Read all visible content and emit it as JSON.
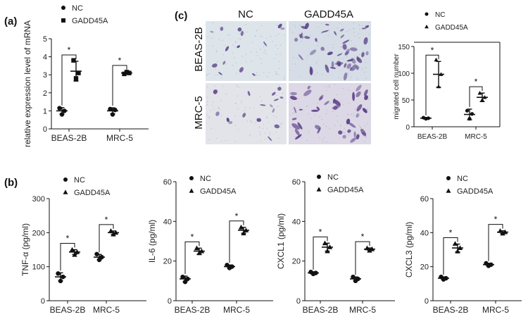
{
  "panels": {
    "a": "(a)",
    "b": "(b)",
    "c": "(c)"
  },
  "colors": {
    "ink": "#111111",
    "stain": "#5a3f86",
    "field": "#d9e2e9"
  },
  "micrograph": {
    "col_labels": [
      "NC",
      "GADD45A"
    ],
    "row_labels": [
      "BEAS-2B",
      "MRC-5"
    ]
  },
  "chart_data": [
    {
      "id": "a",
      "type": "scatter",
      "ylabel": "relative expression level of mRNA",
      "categories": [
        "BEAS-2B",
        "MRC-5"
      ],
      "ylim": [
        0,
        5
      ],
      "yticks": [
        0,
        1,
        2,
        3,
        4,
        5
      ],
      "legend": [
        "NC",
        "GADD45A"
      ],
      "legend_position": "top-left",
      "series": [
        {
          "name": "NC",
          "marker": "circle",
          "points": [
            [
              1.15,
              0.8,
              1.0
            ],
            [
              1.1,
              0.8,
              1.05
            ]
          ],
          "mean": [
            1.0,
            1.0
          ],
          "sd": [
            0.18,
            0.17
          ]
        },
        {
          "name": "GADD45A",
          "marker": "square",
          "points": [
            [
              3.8,
              2.8,
              3.1
            ],
            [
              3.05,
              3.15,
              3.1
            ]
          ],
          "mean": [
            3.2,
            3.1
          ],
          "sd": [
            0.55,
            0.07
          ]
        }
      ],
      "significance": [
        "*",
        "*"
      ]
    },
    {
      "id": "c",
      "type": "scatter",
      "ylabel": "migrated cell number",
      "categories": [
        "BEAS-2B",
        "MRC-5"
      ],
      "ylim": [
        0,
        150
      ],
      "yticks": [
        0,
        50,
        100,
        150
      ],
      "legend": [
        "NC",
        "GADD45A"
      ],
      "legend_position": "top-left",
      "series": [
        {
          "name": "NC",
          "marker": "circle",
          "points": [
            [
              17,
              15,
              16
            ],
            [
              30,
              15,
              24
            ]
          ],
          "mean": [
            16,
            23
          ],
          "sd": [
            1.5,
            10
          ]
        },
        {
          "name": "GADD45A",
          "marker": "triangle",
          "points": [
            [
              125,
              75,
              98
            ],
            [
              63,
              50,
              55
            ]
          ],
          "mean": [
            98,
            55
          ],
          "sd": [
            24,
            8
          ]
        }
      ],
      "significance": [
        "*",
        "*"
      ]
    },
    {
      "id": "tnf",
      "type": "scatter",
      "ylabel": "TNF-α (pg/ml)",
      "categories": [
        "BEAS-2B",
        "MRC-5"
      ],
      "ylim": [
        0,
        300
      ],
      "yticks": [
        0,
        100,
        200,
        300
      ],
      "legend": [
        "NC",
        "GADD45A"
      ],
      "legend_position": "top-left",
      "series": [
        {
          "name": "NC",
          "marker": "circle",
          "points": [
            [
              80,
              58,
              70
            ],
            [
              137,
              120,
              128
            ]
          ],
          "mean": [
            70,
            128
          ],
          "sd": [
            12,
            8
          ]
        },
        {
          "name": "GADD45A",
          "marker": "triangle",
          "points": [
            [
              150,
              135,
              143
            ],
            [
              205,
              195,
              200
            ]
          ],
          "mean": [
            143,
            200
          ],
          "sd": [
            7,
            5
          ]
        }
      ],
      "significance": [
        "*",
        "*"
      ]
    },
    {
      "id": "il6",
      "type": "scatter",
      "ylabel": "IL-6 (pg/ml)",
      "categories": [
        "BEAS-2B",
        "MRC-5"
      ],
      "ylim": [
        0,
        60
      ],
      "yticks": [
        0,
        20,
        40,
        60
      ],
      "legend": [
        "NC",
        "GADD45A"
      ],
      "legend_position": "top-left",
      "series": [
        {
          "name": "NC",
          "marker": "circle",
          "points": [
            [
              12,
              9.5,
              11
            ],
            [
              18,
              16.5,
              17.2
            ]
          ],
          "mean": [
            11,
            17.2
          ],
          "sd": [
            1.4,
            0.8
          ]
        },
        {
          "name": "GADD45A",
          "marker": "triangle",
          "points": [
            [
              26.5,
              24,
              25
            ],
            [
              37,
              34,
              35.5
            ]
          ],
          "mean": [
            25,
            35.5
          ],
          "sd": [
            1.5,
            1.5
          ]
        }
      ],
      "significance": [
        "*",
        "*"
      ]
    },
    {
      "id": "cxcl1",
      "type": "scatter",
      "ylabel": "CXCL1 (pg/ml)",
      "categories": [
        "BEAS-2B",
        "MRC-5"
      ],
      "ylim": [
        0,
        60
      ],
      "yticks": [
        0,
        20,
        40,
        60
      ],
      "legend": [
        "NC",
        "GADD45A"
      ],
      "legend_position": "top-left",
      "series": [
        {
          "name": "NC",
          "marker": "circle",
          "points": [
            [
              14.5,
              13.5,
              14
            ],
            [
              12,
              10,
              11
            ]
          ],
          "mean": [
            14,
            11
          ],
          "sd": [
            0.6,
            1.0
          ]
        },
        {
          "name": "GADD45A",
          "marker": "triangle",
          "points": [
            [
              29,
              25,
              27
            ],
            [
              26.5,
              25.3,
              26
            ]
          ],
          "mean": [
            27,
            26
          ],
          "sd": [
            2.0,
            0.6
          ]
        }
      ],
      "significance": [
        "*",
        "*"
      ]
    },
    {
      "id": "cxcl3",
      "type": "scatter",
      "ylabel": "CXCL3 (pg/ml)",
      "categories": [
        "BEAS-2B",
        "MRC-5"
      ],
      "ylim": [
        0,
        60
      ],
      "yticks": [
        0,
        20,
        40,
        60
      ],
      "legend": [
        "NC",
        "GADD45A"
      ],
      "legend_position": "top-left",
      "series": [
        {
          "name": "NC",
          "marker": "circle",
          "points": [
            [
              14,
              12.5,
              13.2
            ],
            [
              22,
              20.5,
              21.2
            ]
          ],
          "mean": [
            13.2,
            21.2
          ],
          "sd": [
            0.8,
            0.8
          ]
        },
        {
          "name": "GADD45A",
          "marker": "triangle",
          "points": [
            [
              33.5,
              29,
              31
            ],
            [
              41,
              39.5,
              40.3
            ]
          ],
          "mean": [
            31,
            40.3
          ],
          "sd": [
            2.3,
            0.8
          ]
        }
      ],
      "significance": [
        "*",
        "*"
      ]
    }
  ]
}
